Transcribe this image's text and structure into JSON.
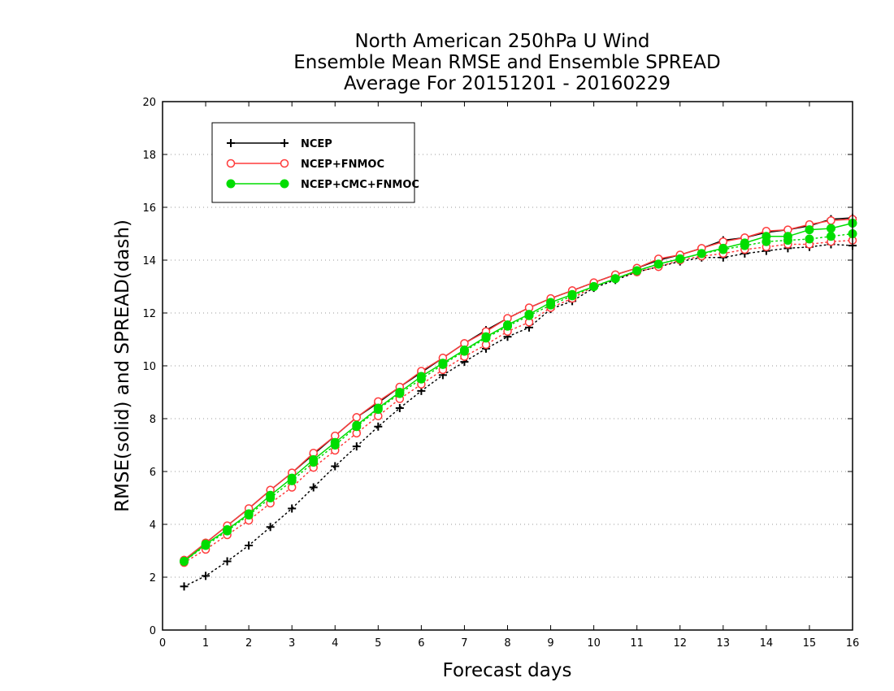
{
  "chart_data": {
    "type": "line",
    "title": [
      "North American 250hPa U Wind",
      "Ensemble Mean RMSE and Ensemble SPREAD",
      "Average For 20151201 - 20160229"
    ],
    "xlabel": "Forecast days",
    "ylabel": "RMSE(solid) and SPREAD(dash)",
    "xlim": [
      0,
      16
    ],
    "ylim": [
      0,
      20
    ],
    "x_ticks": [
      0,
      1,
      2,
      3,
      4,
      5,
      6,
      7,
      8,
      9,
      10,
      11,
      12,
      13,
      14,
      15,
      16
    ],
    "y_ticks": [
      0,
      2,
      4,
      6,
      8,
      10,
      12,
      14,
      16,
      18,
      20
    ],
    "grid": "horizontal dotted",
    "legend_position": "top-left",
    "x": [
      0.5,
      1,
      1.5,
      2,
      2.5,
      3,
      3.5,
      4,
      4.5,
      5,
      5.5,
      6,
      6.5,
      7,
      7.5,
      8,
      8.5,
      9,
      9.5,
      10,
      10.5,
      11,
      11.5,
      12,
      12.5,
      13,
      13.5,
      14,
      14.5,
      15,
      15.5,
      16
    ],
    "series": [
      {
        "name": "NCEP",
        "color": "#000000",
        "marker": "plus",
        "rmse": [
          2.65,
          3.3,
          3.95,
          4.6,
          5.3,
          5.95,
          6.65,
          7.35,
          8.05,
          8.6,
          9.2,
          9.75,
          10.3,
          10.85,
          11.35,
          11.8,
          12.2,
          12.55,
          12.85,
          13.15,
          13.45,
          13.7,
          14.0,
          14.2,
          14.45,
          14.75,
          14.85,
          15.05,
          15.15,
          15.3,
          15.55,
          15.6
        ],
        "spread": [
          1.65,
          2.05,
          2.6,
          3.2,
          3.9,
          4.6,
          5.4,
          6.2,
          6.95,
          7.7,
          8.4,
          9.05,
          9.65,
          10.15,
          10.65,
          11.1,
          11.45,
          12.15,
          12.45,
          12.95,
          13.25,
          13.55,
          13.75,
          13.95,
          14.1,
          14.1,
          14.25,
          14.35,
          14.45,
          14.5,
          14.6,
          14.55
        ]
      },
      {
        "name": "NCEP+FNMOC",
        "color": "#ff3b3b",
        "marker": "open-circle",
        "rmse": [
          2.65,
          3.3,
          3.95,
          4.6,
          5.3,
          5.95,
          6.7,
          7.35,
          8.05,
          8.65,
          9.2,
          9.8,
          10.3,
          10.85,
          11.3,
          11.8,
          12.2,
          12.55,
          12.85,
          13.15,
          13.45,
          13.7,
          14.05,
          14.2,
          14.45,
          14.7,
          14.85,
          15.1,
          15.15,
          15.35,
          15.5,
          15.55
        ],
        "spread": [
          2.55,
          3.05,
          3.6,
          4.15,
          4.8,
          5.4,
          6.15,
          6.8,
          7.45,
          8.1,
          8.75,
          9.3,
          9.85,
          10.35,
          10.8,
          11.3,
          11.65,
          12.2,
          12.55,
          13.0,
          13.3,
          13.55,
          13.75,
          14.0,
          14.15,
          14.25,
          14.4,
          14.5,
          14.6,
          14.6,
          14.7,
          14.75
        ]
      },
      {
        "name": "NCEP+CMC+FNMOC",
        "color": "#00dd00",
        "marker": "filled-circle",
        "rmse": [
          2.6,
          3.25,
          3.8,
          4.4,
          5.1,
          5.75,
          6.45,
          7.1,
          7.75,
          8.4,
          9.0,
          9.6,
          10.1,
          10.6,
          11.1,
          11.55,
          11.95,
          12.4,
          12.7,
          13.0,
          13.3,
          13.6,
          13.85,
          14.05,
          14.25,
          14.45,
          14.65,
          14.9,
          14.9,
          15.15,
          15.2,
          15.4
        ],
        "spread": [
          2.6,
          3.2,
          3.75,
          4.35,
          5.0,
          5.65,
          6.35,
          7.0,
          7.7,
          8.35,
          8.95,
          9.5,
          10.05,
          10.55,
          11.05,
          11.5,
          11.9,
          12.3,
          12.65,
          13.0,
          13.3,
          13.6,
          13.85,
          14.05,
          14.25,
          14.4,
          14.55,
          14.7,
          14.75,
          14.8,
          14.9,
          15.0
        ]
      }
    ]
  }
}
